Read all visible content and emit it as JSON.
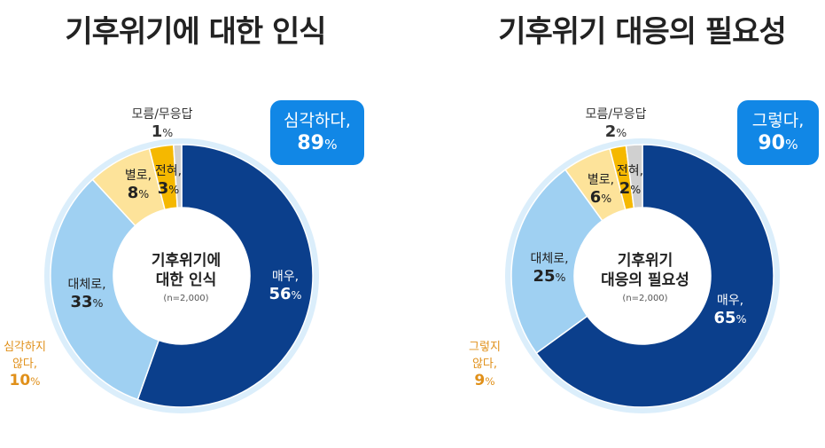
{
  "chart_data": [
    {
      "type": "pie",
      "title": "기후위기에 대한 인식",
      "center_label_lines": [
        "기후위기에",
        "대한 인식"
      ],
      "sample_note": "(n=2,000)",
      "categories": [
        "매우,",
        "대체로,",
        "별로,",
        "전혀,",
        "모름/무응답"
      ],
      "values": [
        56,
        33,
        8,
        3,
        1
      ],
      "colors": [
        "#0b3f8c",
        "#9fd0f2",
        "#fde39a",
        "#f5b800",
        "#d0d0d0"
      ],
      "groups": [
        {
          "label": "심각하다,",
          "value": 89,
          "color": "#1187e6"
        },
        {
          "label_lines": [
            "심각하지",
            "않다,"
          ],
          "value": 10,
          "color": "#e0901a"
        }
      ],
      "unit": "%"
    },
    {
      "type": "pie",
      "title": "기후위기 대응의 필요성",
      "center_label_lines": [
        "기후위기",
        "대응의 필요성"
      ],
      "sample_note": "(n=2,000)",
      "categories": [
        "매우,",
        "대체로,",
        "별로,",
        "전혀,",
        "모름/무응답"
      ],
      "values": [
        65,
        25,
        6,
        2,
        2
      ],
      "colors": [
        "#0b3f8c",
        "#9fd0f2",
        "#fde39a",
        "#f5b800",
        "#d0d0d0"
      ],
      "groups": [
        {
          "label": "그렇다,",
          "value": 90,
          "color": "#1187e6"
        },
        {
          "label_lines": [
            "그렇지",
            "않다,"
          ],
          "value": 9,
          "color": "#e0901a"
        }
      ],
      "unit": "%"
    }
  ]
}
